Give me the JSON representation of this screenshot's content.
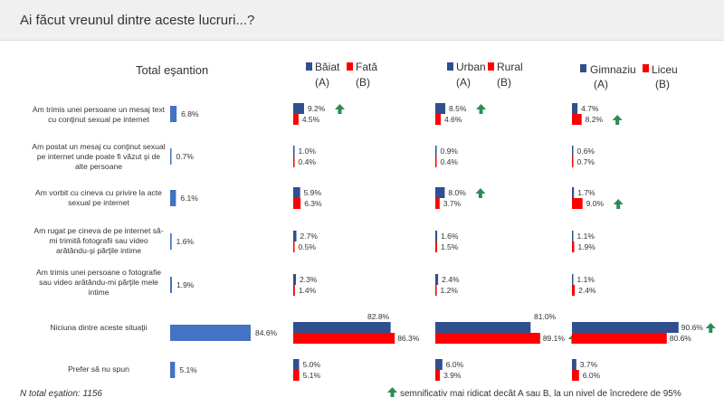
{
  "title": "Ai făcut vreunul dintre aceste lucruri...?",
  "colors": {
    "total": "#4472c4",
    "groupA": "#2f4f8f",
    "groupB": "#ff0000",
    "arrow": "#2e8b57"
  },
  "headers": {
    "total": "Total eşantion",
    "gender": {
      "a": "Băiat",
      "a_sub": "(A)",
      "b": "Fată",
      "b_sub": "(B)"
    },
    "area": {
      "a": "Urban",
      "a_sub": "(A)",
      "b": "Rural",
      "b_sub": "(B)"
    },
    "school": {
      "a": "Gimnaziu",
      "a_sub": "(A)",
      "b": "Liceu",
      "b_sub": "(B)"
    }
  },
  "footnote_left": "N total eşation: 1156",
  "footnote_right": "semnificativ mai ridicat decât A sau B, la un nivel de încredere de 95%",
  "chart_data": {
    "type": "bar",
    "categories": [
      "Am trimis unei persoane un mesaj text cu conţinut sexual pe internet",
      "Am postat un mesaj cu conţinut sexual pe internet unde poate fi văzut şi de alte persoane",
      "Am vorbit cu cineva cu privire la acte sexual pe internet",
      "Am rugat pe cineva de pe internet să-mi trimită fotografii sau video arătându-şi părţile intime",
      "Am trimis unei persoane o fotografie sau video arătându-mi părţile mele intime",
      "Niciuna dintre aceste situaţii",
      "Prefer să nu spun"
    ],
    "total": {
      "name": "Total eşantion",
      "values": [
        6.8,
        0.7,
        6.1,
        1.6,
        1.9,
        84.6,
        5.1
      ],
      "labels": [
        "6.8%",
        "0.7%",
        "6.1%",
        "1.6%",
        "1.9%",
        "84.6%",
        "5.1%"
      ]
    },
    "groups": [
      {
        "a": {
          "name": "Băiat",
          "values": [
            9.2,
            1.0,
            5.9,
            2.7,
            2.3,
            82.8,
            5.0
          ],
          "labels": [
            "9.2%",
            "1.0%",
            "5.9%",
            "2.7%",
            "2.3%",
            "82.8%",
            "5.0%"
          ]
        },
        "b": {
          "name": "Fată",
          "values": [
            4.5,
            0.4,
            6.3,
            0.5,
            1.4,
            86.3,
            5.1
          ],
          "labels": [
            "4.5%",
            "0.4%",
            "6.3%",
            "0.5%",
            "1.4%",
            "86.3%",
            "5.1%"
          ]
        },
        "sig_a": [
          0
        ],
        "sig_b": []
      },
      {
        "a": {
          "name": "Urban",
          "values": [
            8.5,
            0.9,
            8.0,
            1.6,
            2.4,
            81.0,
            6.0
          ],
          "labels": [
            "8.5%",
            "0.9%",
            "8.0%",
            "1.6%",
            "2.4%",
            "81.0%",
            "6.0%"
          ]
        },
        "b": {
          "name": "Rural",
          "values": [
            4.6,
            0.4,
            3.7,
            1.5,
            1.2,
            89.1,
            3.9
          ],
          "labels": [
            "4.6%",
            "0.4%",
            "3.7%",
            "1.5%",
            "1.2%",
            "89.1%",
            "3.9%"
          ]
        },
        "sig_a": [
          0,
          2
        ],
        "sig_b": [
          5
        ]
      },
      {
        "a": {
          "name": "Gimnaziu",
          "values": [
            4.7,
            0.6,
            1.7,
            1.1,
            1.1,
            90.6,
            3.7
          ],
          "labels": [
            "4.7%",
            "0.6%",
            "1.7%",
            "1.1%",
            "1.1%",
            "90.6%",
            "3.7%"
          ]
        },
        "b": {
          "name": "Liceu",
          "values": [
            8.2,
            0.7,
            9.0,
            1.9,
            2.4,
            80.6,
            6.0
          ],
          "labels": [
            "8.2%",
            "0.7%",
            "9.0%",
            "1.9%",
            "2.4%",
            "80.6%",
            "6.0%"
          ]
        },
        "sig_a": [
          5
        ],
        "sig_b": [
          0,
          2
        ]
      }
    ],
    "xlim": [
      0,
      100
    ]
  }
}
